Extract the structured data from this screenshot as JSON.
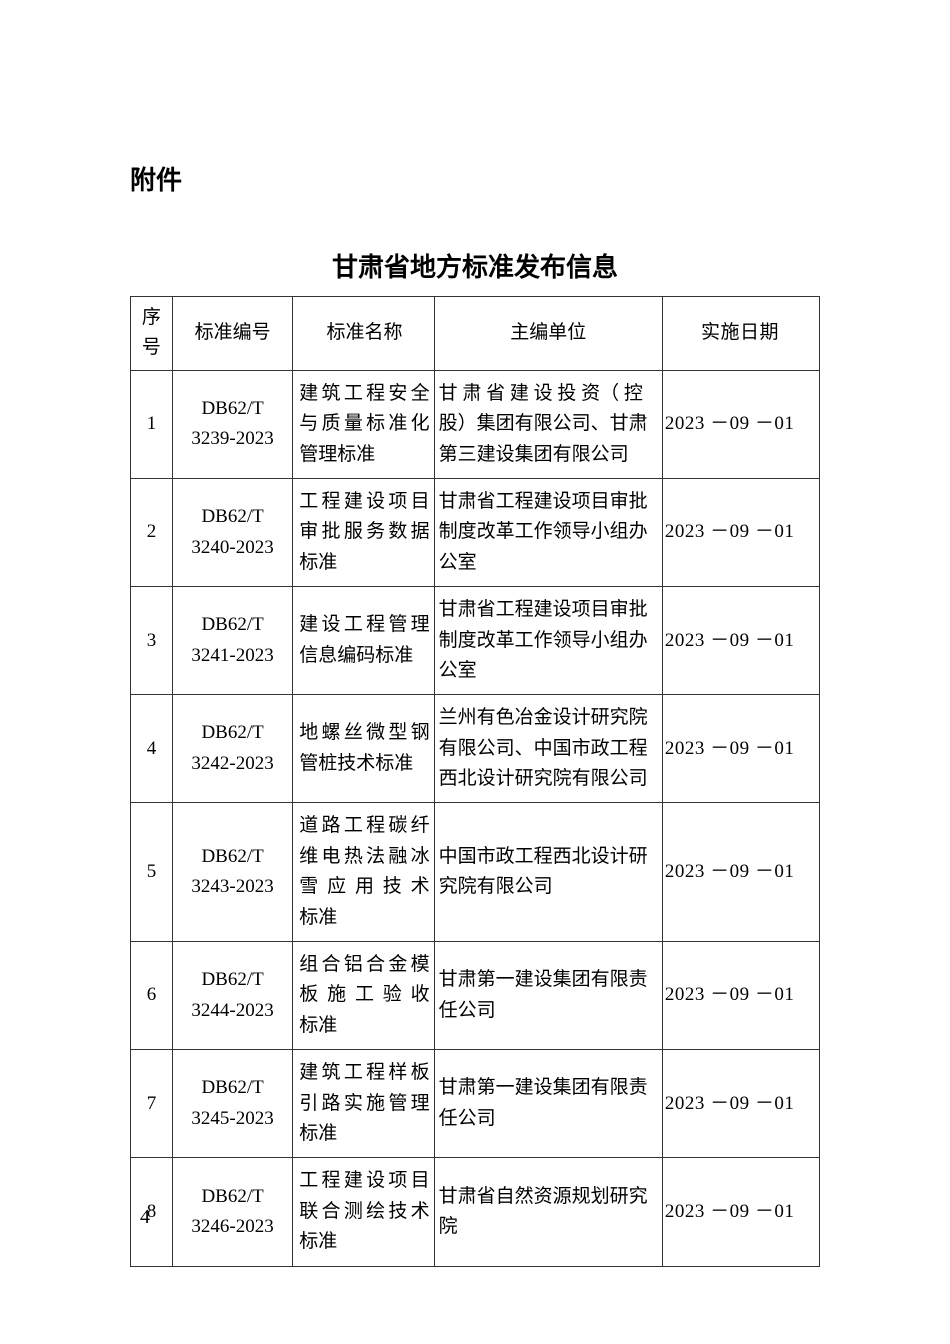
{
  "attachment_label": "附件",
  "title": "甘肃省地方标准发布信息",
  "page_number": "4",
  "columns": {
    "seq": "序号",
    "code": "标准编号",
    "name": "标准名称",
    "org": "主编单位",
    "date": "实施日期"
  },
  "rows": [
    {
      "seq": "1",
      "code_line1": "DB62/T",
      "code_line2": "3239-2023",
      "name": "建筑工程安全与质量标准化管理标准",
      "org": "甘 肃 省 建 设 投 资（ 控股）集团有限公司、甘肃第三建设集团有限公司",
      "date": "2023 －09 －01"
    },
    {
      "seq": "2",
      "code_line1": "DB62/T",
      "code_line2": "3240-2023",
      "name": "工程建设项目审批服务数据标准",
      "org": "甘肃省工程建设项目审批制度改革工作领导小组办公室",
      "date": "2023 －09 －01"
    },
    {
      "seq": "3",
      "code_line1": "DB62/T",
      "code_line2": "3241-2023",
      "name": "建设工程管理信息编码标准",
      "org": "甘肃省工程建设项目审批制度改革工作领导小组办公室",
      "date": "2023 －09 －01"
    },
    {
      "seq": "4",
      "code_line1": "DB62/T",
      "code_line2": "3242-2023",
      "name": "地螺丝微型钢管桩技术标准",
      "org": "兰州有色冶金设计研究院有限公司、中国市政工程西北设计研究院有限公司",
      "date": "2023 －09 －01"
    },
    {
      "seq": "5",
      "code_line1": "DB62/T",
      "code_line2": "3243-2023",
      "name": "道路工程碳纤维电热法融冰雪 应 用 技 术标准",
      "org": "中国市政工程西北设计研究院有限公司",
      "date": "2023 －09 －01"
    },
    {
      "seq": "6",
      "code_line1": "DB62/T",
      "code_line2": "3244-2023",
      "name": "组合铝合金模板 施 工 验 收标准",
      "org": "甘肃第一建设集团有限责任公司",
      "date": "2023 －09 －01"
    },
    {
      "seq": "7",
      "code_line1": "DB62/T",
      "code_line2": "3245-2023",
      "name": "建筑工程样板引路实施管理标准",
      "org": "甘肃第一建设集团有限责任公司",
      "date": "2023 －09 －01"
    },
    {
      "seq": "8",
      "code_line1": "DB62/T",
      "code_line2": "3246-2023",
      "name": "工程建设项目联合测绘技术标准",
      "org": "甘肃省自然资源规划研究院",
      "date": "2023 －09 －01"
    }
  ]
}
